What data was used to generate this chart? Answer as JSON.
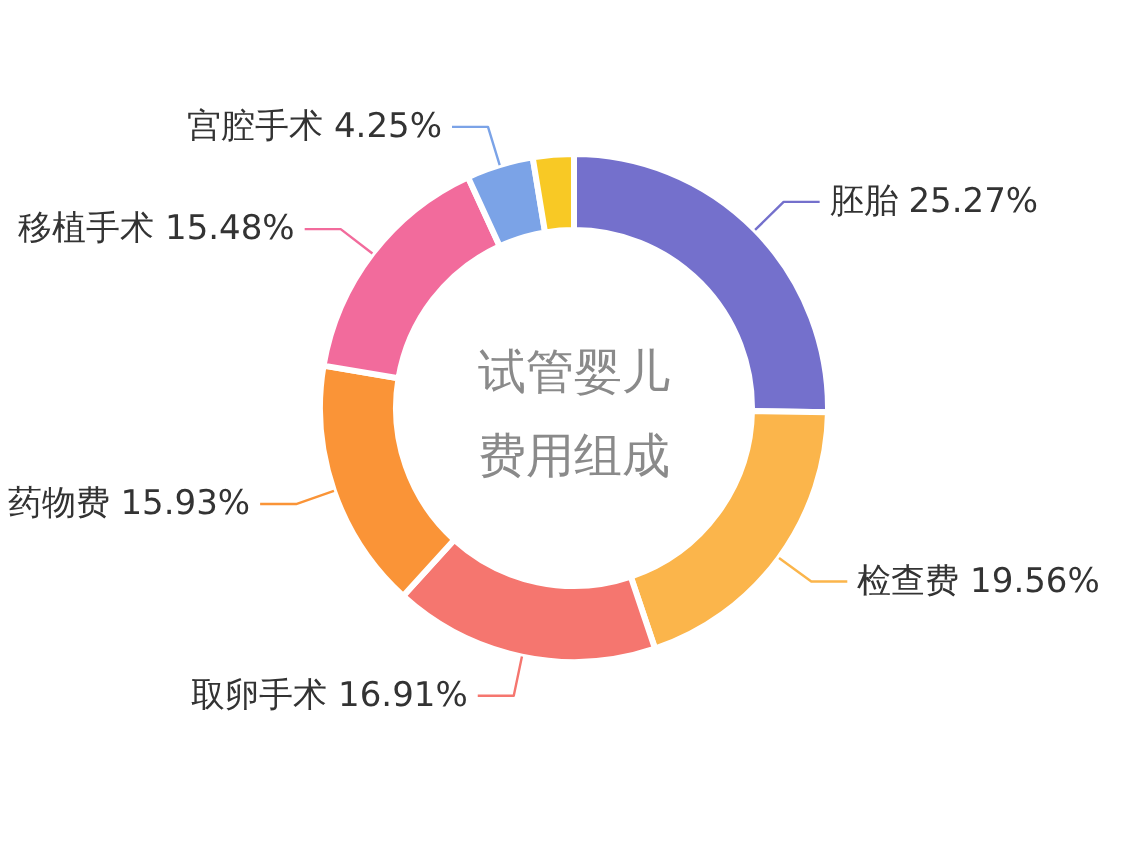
{
  "chart_data": {
    "type": "donut",
    "title": "试管婴儿费用组成",
    "categories": [
      "胚胎",
      "检查费",
      "取卵手术",
      "药物费",
      "移植手术",
      "宫腔手术",
      null
    ],
    "values": [
      25.27,
      19.56,
      16.91,
      15.93,
      15.48,
      4.25,
      2.6
    ],
    "colors": [
      "#7470cc",
      "#fbb54b",
      "#f5766f",
      "#fa9437",
      "#f26b9c",
      "#7ba3e7",
      "#f8c925"
    ],
    "value_labels": [
      "25.27%",
      "19.56%",
      "16.91%",
      "15.93%",
      "15.48%",
      "4.25%",
      null
    ]
  }
}
